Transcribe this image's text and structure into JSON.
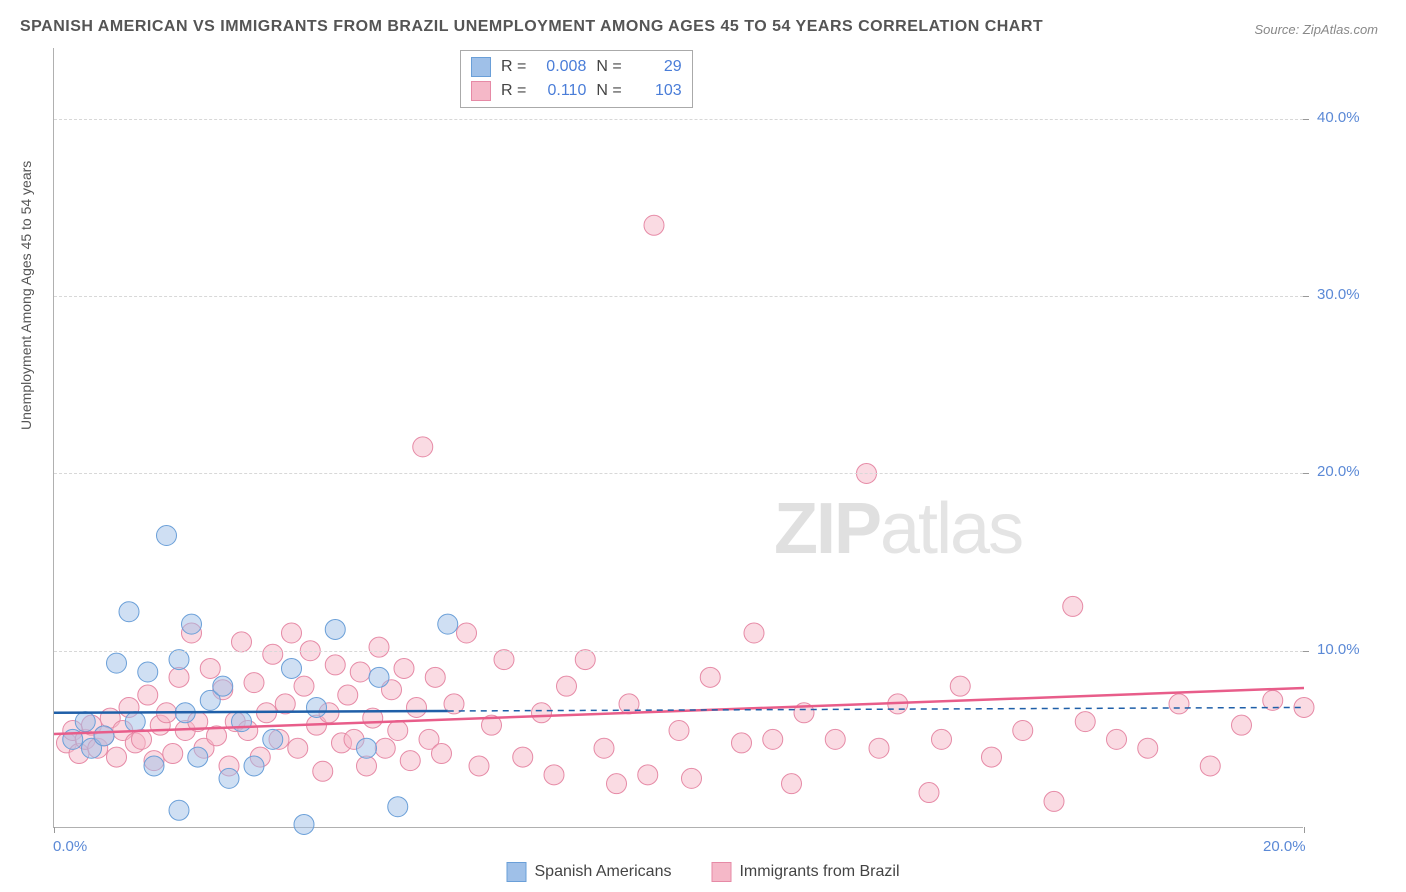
{
  "title": "SPANISH AMERICAN VS IMMIGRANTS FROM BRAZIL UNEMPLOYMENT AMONG AGES 45 TO 54 YEARS CORRELATION CHART",
  "source": "Source: ZipAtlas.com",
  "watermark_bold": "ZIP",
  "watermark_thin": "atlas",
  "y_axis_label": "Unemployment Among Ages 45 to 54 years",
  "chart": {
    "type": "scatter",
    "background_color": "#ffffff",
    "grid_color": "#d8d8d8",
    "xlim": [
      0,
      20
    ],
    "ylim": [
      0,
      44
    ],
    "x_ticks": [
      0,
      20
    ],
    "x_tick_labels": [
      "0.0%",
      "20.0%"
    ],
    "y_ticks": [
      10,
      20,
      30,
      40
    ],
    "y_tick_labels": [
      "10.0%",
      "20.0%",
      "30.0%",
      "40.0%"
    ],
    "marker_radius": 10,
    "marker_opacity": 0.5,
    "series_a": {
      "label": "Spanish Americans",
      "color_fill": "#9fc0e8",
      "color_stroke": "#6a9fd8",
      "r_value": "0.008",
      "n_value": "29",
      "trend": {
        "x1": 0,
        "y1": 6.5,
        "x2": 6.3,
        "y2": 6.6,
        "color": "#1f5fa8",
        "width": 2.5
      },
      "trend_dash": {
        "x1": 6.3,
        "y1": 6.6,
        "x2": 20,
        "y2": 6.8,
        "color": "#1f5fa8",
        "width": 1.5
      },
      "points": [
        [
          0.3,
          5.0
        ],
        [
          0.5,
          6.0
        ],
        [
          0.6,
          4.5
        ],
        [
          0.8,
          5.2
        ],
        [
          1.0,
          9.3
        ],
        [
          1.2,
          12.2
        ],
        [
          1.3,
          6.0
        ],
        [
          1.5,
          8.8
        ],
        [
          1.6,
          3.5
        ],
        [
          1.8,
          16.5
        ],
        [
          2.0,
          1.0
        ],
        [
          2.0,
          9.5
        ],
        [
          2.1,
          6.5
        ],
        [
          2.2,
          11.5
        ],
        [
          2.3,
          4.0
        ],
        [
          2.5,
          7.2
        ],
        [
          2.7,
          8.0
        ],
        [
          2.8,
          2.8
        ],
        [
          3.0,
          6.0
        ],
        [
          3.2,
          3.5
        ],
        [
          3.5,
          5.0
        ],
        [
          3.8,
          9.0
        ],
        [
          4.0,
          0.2
        ],
        [
          4.2,
          6.8
        ],
        [
          4.5,
          11.2
        ],
        [
          5.0,
          4.5
        ],
        [
          5.2,
          8.5
        ],
        [
          5.5,
          1.2
        ],
        [
          6.3,
          11.5
        ]
      ]
    },
    "series_b": {
      "label": "Immigrants from Brazil",
      "color_fill": "#f5b8c8",
      "color_stroke": "#e68aa6",
      "r_value": "0.110",
      "n_value": "103",
      "trend": {
        "x1": 0,
        "y1": 5.3,
        "x2": 20,
        "y2": 7.9,
        "color": "#e85d8a",
        "width": 2.5
      },
      "points": [
        [
          0.2,
          4.8
        ],
        [
          0.3,
          5.5
        ],
        [
          0.4,
          4.2
        ],
        [
          0.5,
          5.0
        ],
        [
          0.6,
          5.8
        ],
        [
          0.7,
          4.5
        ],
        [
          0.8,
          5.2
        ],
        [
          0.9,
          6.2
        ],
        [
          1.0,
          4.0
        ],
        [
          1.1,
          5.5
        ],
        [
          1.2,
          6.8
        ],
        [
          1.3,
          4.8
        ],
        [
          1.4,
          5.0
        ],
        [
          1.5,
          7.5
        ],
        [
          1.6,
          3.8
        ],
        [
          1.7,
          5.8
        ],
        [
          1.8,
          6.5
        ],
        [
          1.9,
          4.2
        ],
        [
          2.0,
          8.5
        ],
        [
          2.1,
          5.5
        ],
        [
          2.2,
          11.0
        ],
        [
          2.3,
          6.0
        ],
        [
          2.4,
          4.5
        ],
        [
          2.5,
          9.0
        ],
        [
          2.6,
          5.2
        ],
        [
          2.7,
          7.8
        ],
        [
          2.8,
          3.5
        ],
        [
          2.9,
          6.0
        ],
        [
          3.0,
          10.5
        ],
        [
          3.1,
          5.5
        ],
        [
          3.2,
          8.2
        ],
        [
          3.3,
          4.0
        ],
        [
          3.4,
          6.5
        ],
        [
          3.5,
          9.8
        ],
        [
          3.6,
          5.0
        ],
        [
          3.7,
          7.0
        ],
        [
          3.8,
          11.0
        ],
        [
          3.9,
          4.5
        ],
        [
          4.0,
          8.0
        ],
        [
          4.1,
          10.0
        ],
        [
          4.2,
          5.8
        ],
        [
          4.3,
          3.2
        ],
        [
          4.4,
          6.5
        ],
        [
          4.5,
          9.2
        ],
        [
          4.6,
          4.8
        ],
        [
          4.7,
          7.5
        ],
        [
          4.8,
          5.0
        ],
        [
          4.9,
          8.8
        ],
        [
          5.0,
          3.5
        ],
        [
          5.1,
          6.2
        ],
        [
          5.2,
          10.2
        ],
        [
          5.3,
          4.5
        ],
        [
          5.4,
          7.8
        ],
        [
          5.5,
          5.5
        ],
        [
          5.6,
          9.0
        ],
        [
          5.7,
          3.8
        ],
        [
          5.8,
          6.8
        ],
        [
          5.9,
          21.5
        ],
        [
          6.0,
          5.0
        ],
        [
          6.1,
          8.5
        ],
        [
          6.2,
          4.2
        ],
        [
          6.4,
          7.0
        ],
        [
          6.6,
          11.0
        ],
        [
          6.8,
          3.5
        ],
        [
          7.0,
          5.8
        ],
        [
          7.2,
          9.5
        ],
        [
          7.5,
          4.0
        ],
        [
          7.8,
          6.5
        ],
        [
          8.0,
          3.0
        ],
        [
          8.2,
          8.0
        ],
        [
          8.5,
          9.5
        ],
        [
          8.8,
          4.5
        ],
        [
          9.0,
          2.5
        ],
        [
          9.2,
          7.0
        ],
        [
          9.5,
          3.0
        ],
        [
          9.6,
          34.0
        ],
        [
          10.0,
          5.5
        ],
        [
          10.2,
          2.8
        ],
        [
          10.5,
          8.5
        ],
        [
          11.0,
          4.8
        ],
        [
          11.2,
          11.0
        ],
        [
          11.5,
          5.0
        ],
        [
          11.8,
          2.5
        ],
        [
          12.0,
          6.5
        ],
        [
          12.5,
          5.0
        ],
        [
          13.0,
          20.0
        ],
        [
          13.2,
          4.5
        ],
        [
          13.5,
          7.0
        ],
        [
          14.0,
          2.0
        ],
        [
          14.2,
          5.0
        ],
        [
          14.5,
          8.0
        ],
        [
          15.0,
          4.0
        ],
        [
          15.5,
          5.5
        ],
        [
          16.0,
          1.5
        ],
        [
          16.3,
          12.5
        ],
        [
          16.5,
          6.0
        ],
        [
          17.0,
          5.0
        ],
        [
          17.5,
          4.5
        ],
        [
          18.0,
          7.0
        ],
        [
          18.5,
          3.5
        ],
        [
          19.0,
          5.8
        ],
        [
          19.5,
          7.2
        ],
        [
          20.0,
          6.8
        ]
      ]
    }
  },
  "stat_box": {
    "r_label": "R =",
    "n_label": "N ="
  },
  "legend": {
    "a": "Spanish Americans",
    "b": "Immigrants from Brazil"
  }
}
